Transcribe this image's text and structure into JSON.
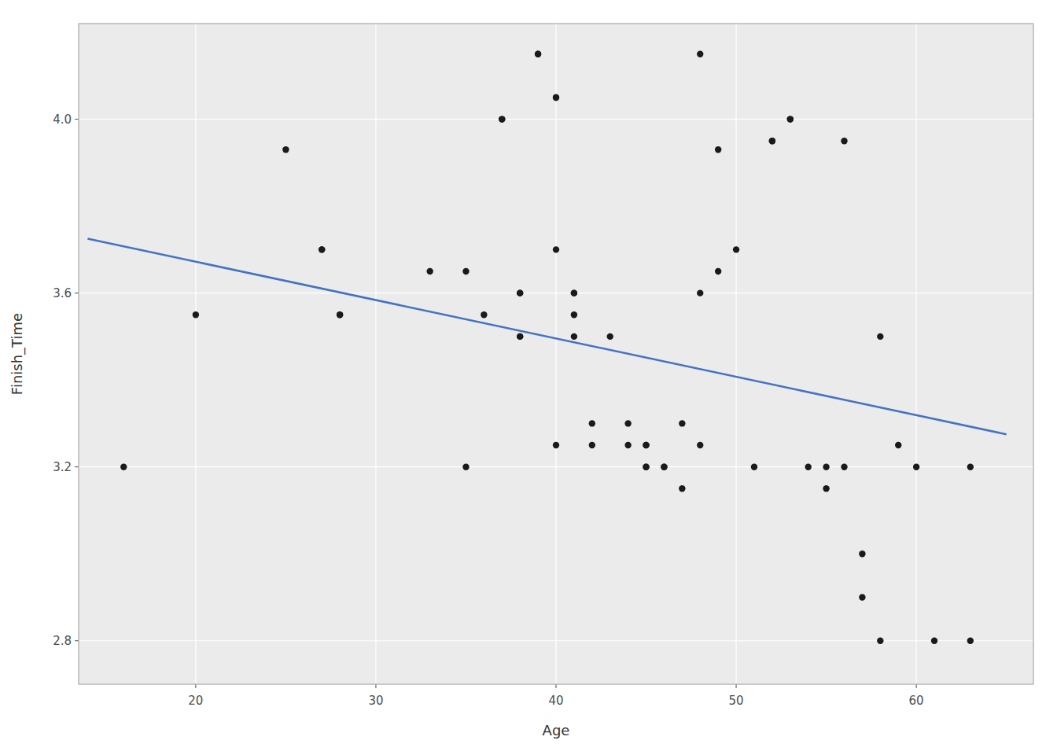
{
  "chart_data": {
    "type": "scatter",
    "xlabel": "Age",
    "ylabel": "Finish_Time",
    "xlim": [
      13.5,
      66.5
    ],
    "ylim": [
      2.7,
      4.22
    ],
    "xticks": [
      20,
      30,
      40,
      50,
      60
    ],
    "yticks": [
      2.8,
      3.2,
      3.6,
      {
        "value": 4.0,
        "label": "4.0"
      }
    ],
    "grid": true,
    "series": [
      {
        "type": "scatter",
        "color": "#1A1A1A",
        "x": [
          16,
          20,
          25,
          27,
          27,
          28,
          28,
          33,
          35,
          35,
          36,
          37,
          37,
          38,
          38,
          38,
          38,
          39,
          39,
          40,
          40,
          40,
          40,
          41,
          41,
          41,
          41,
          42,
          42,
          43,
          44,
          44,
          45,
          45,
          45,
          45,
          46,
          46,
          47,
          47,
          48,
          48,
          48,
          49,
          49,
          50,
          51,
          52,
          52,
          53,
          53,
          54,
          55,
          55,
          56,
          56,
          57,
          57,
          58,
          58,
          59,
          60,
          61,
          63,
          63
        ],
        "values": [
          3.2,
          3.55,
          3.93,
          3.7,
          3.7,
          3.55,
          3.55,
          3.65,
          3.65,
          3.2,
          3.55,
          4.0,
          4.0,
          3.6,
          3.6,
          3.5,
          3.5,
          4.15,
          4.15,
          4.05,
          4.05,
          3.7,
          3.25,
          3.6,
          3.6,
          3.55,
          3.5,
          3.3,
          3.25,
          3.5,
          3.3,
          3.25,
          3.25,
          3.25,
          3.2,
          3.2,
          3.2,
          3.2,
          3.3,
          3.15,
          4.15,
          3.6,
          3.25,
          3.93,
          3.65,
          3.7,
          3.2,
          3.95,
          3.95,
          4.0,
          4.0,
          3.2,
          3.2,
          3.15,
          3.95,
          3.2,
          3.0,
          2.9,
          3.5,
          2.8,
          3.25,
          3.2,
          2.8,
          3.2,
          2.8
        ]
      },
      {
        "type": "line",
        "color": "#4472C4",
        "x": [
          14,
          65
        ],
        "values": [
          3.725,
          3.275
        ]
      }
    ]
  }
}
